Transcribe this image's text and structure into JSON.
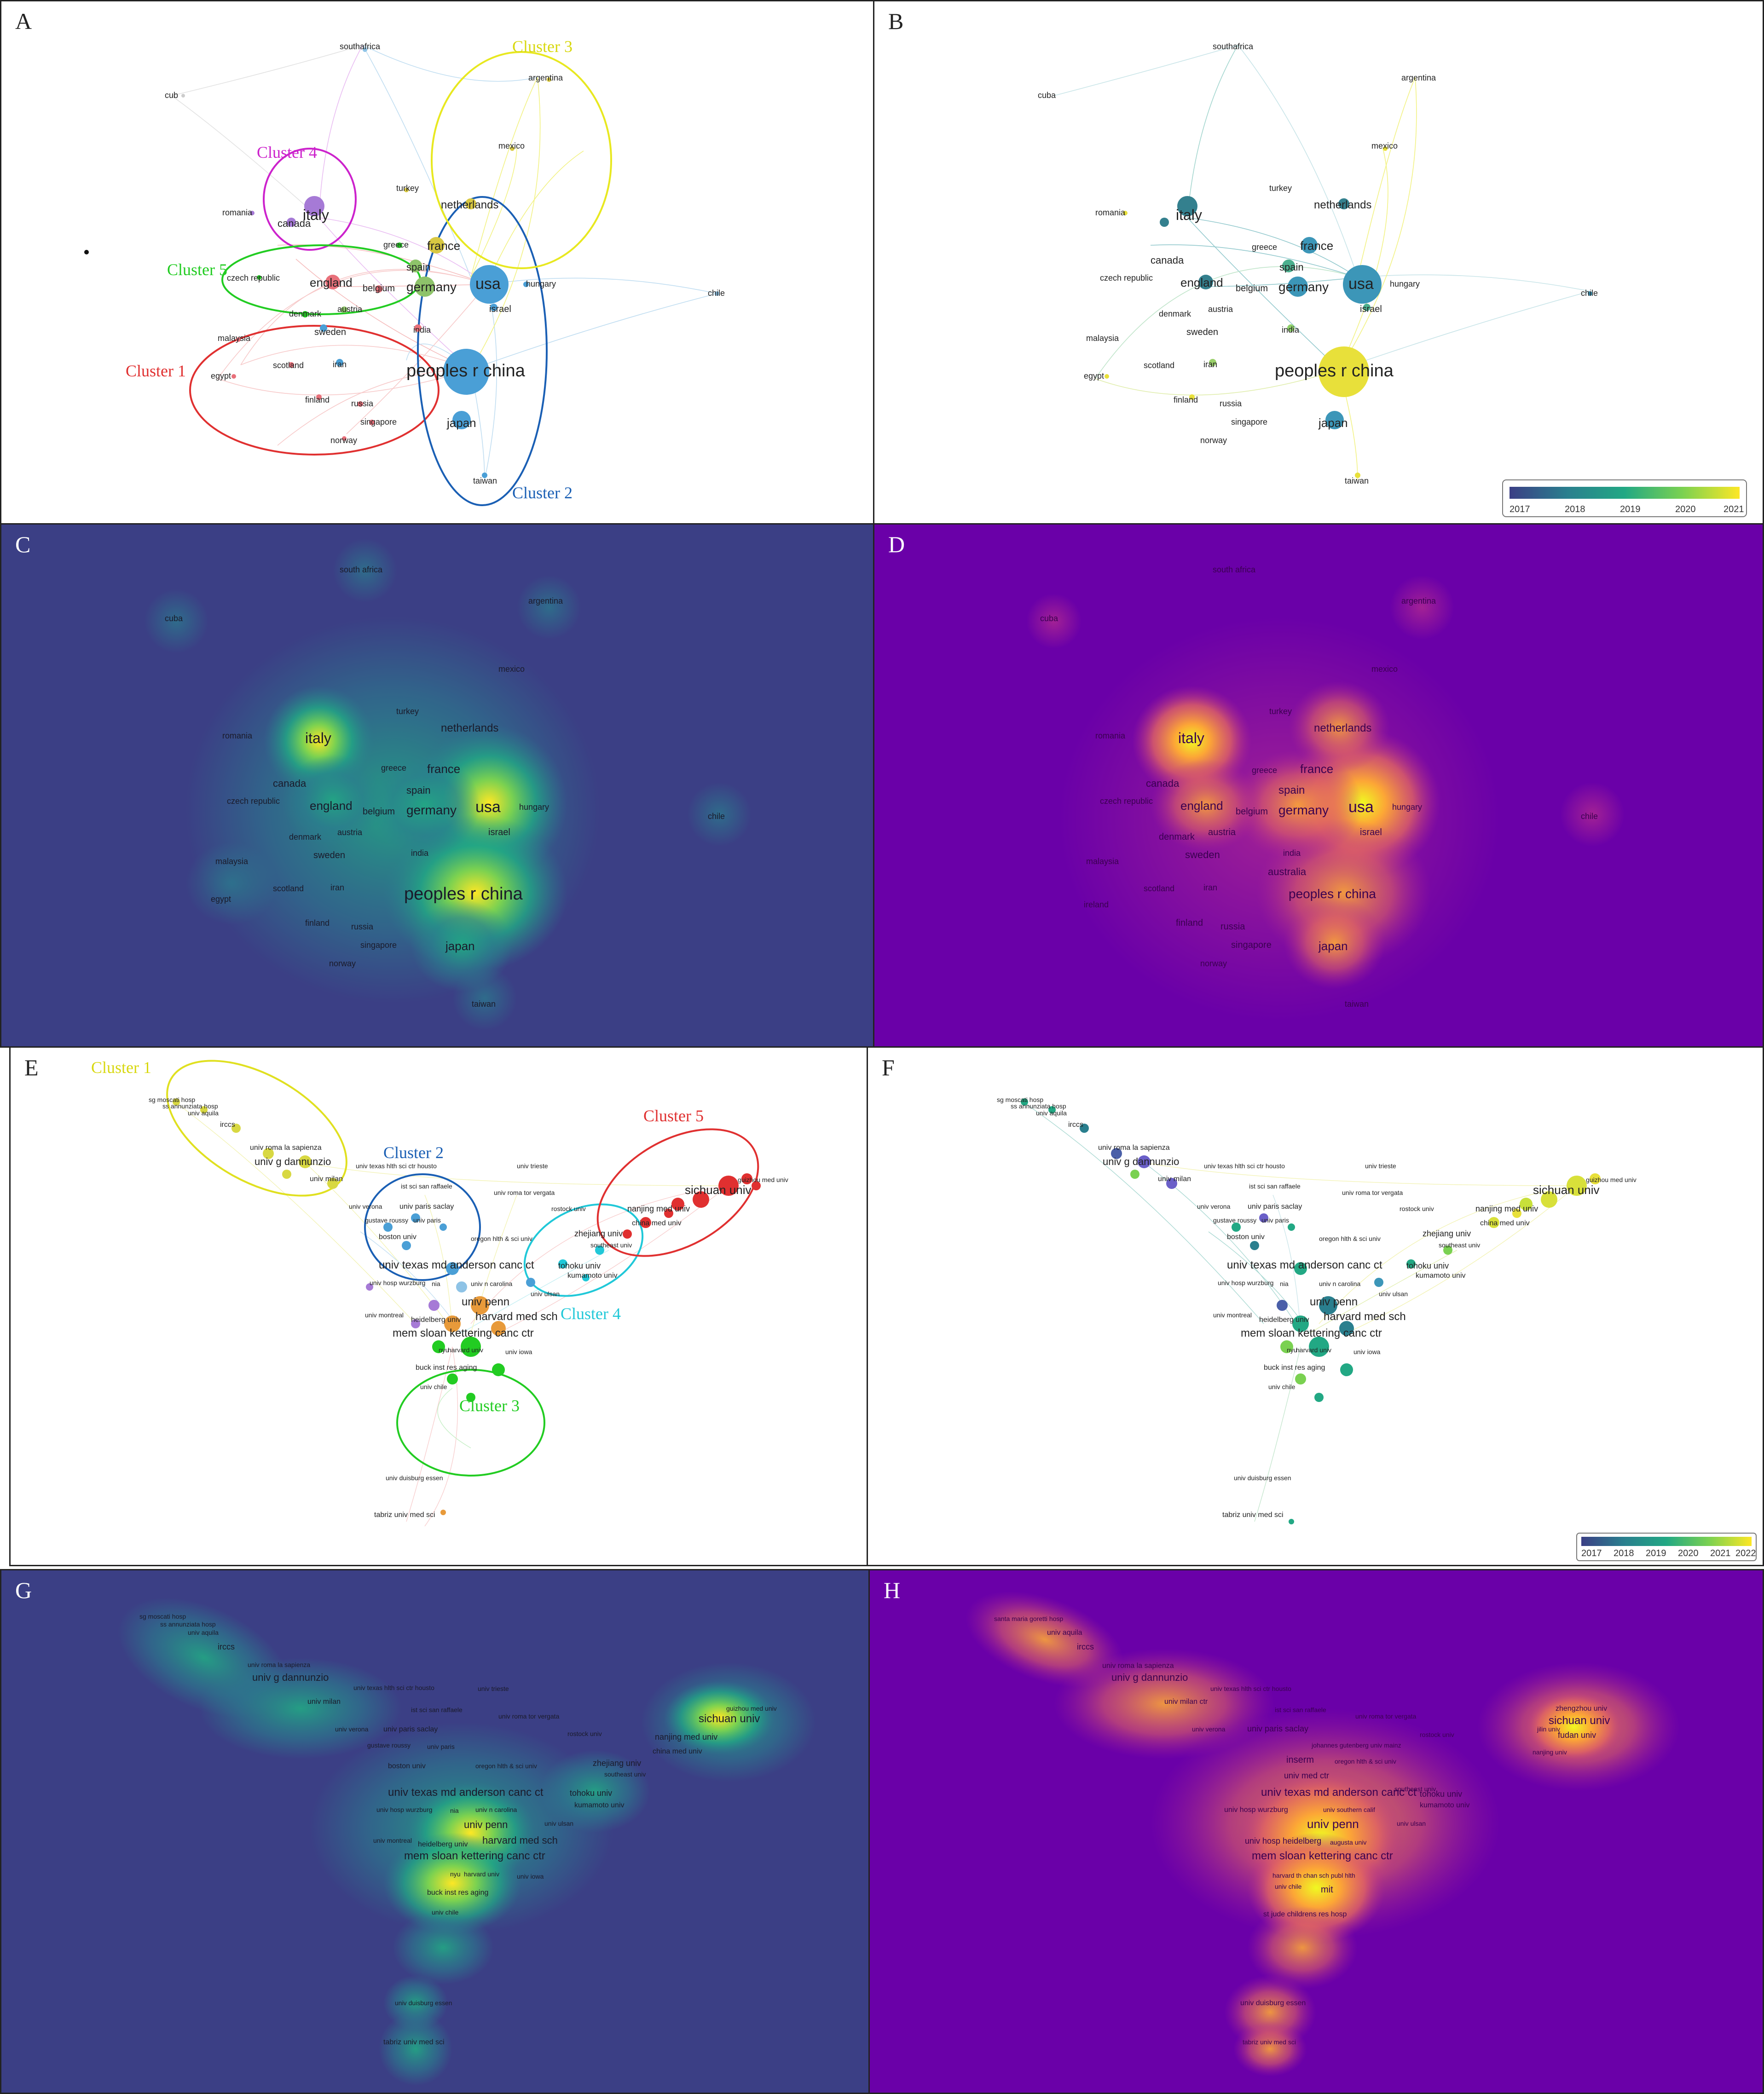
{
  "panels": {
    "A": {
      "label": "A"
    },
    "B": {
      "label": "B"
    },
    "C": {
      "label": "C"
    },
    "D": {
      "label": "D"
    },
    "E": {
      "label": "E"
    },
    "F": {
      "label": "F"
    },
    "G": {
      "label": "G"
    },
    "H": {
      "label": "H"
    }
  },
  "countries": [
    {
      "id": "southafrica_a",
      "label": "southafrica"
    },
    {
      "id": "argentina",
      "label": "argentina"
    },
    {
      "id": "cuba",
      "label": "cuba"
    },
    {
      "id": "mexico",
      "label": "mexico"
    },
    {
      "id": "turkey",
      "label": "turkey"
    },
    {
      "id": "netherlands",
      "label": "netherlands"
    },
    {
      "id": "romania",
      "label": "romania"
    },
    {
      "id": "italy",
      "label": "italy"
    },
    {
      "id": "canada",
      "label": "canada"
    },
    {
      "id": "greece",
      "label": "greece"
    },
    {
      "id": "france",
      "label": "france"
    },
    {
      "id": "czech",
      "label": "czech republic"
    },
    {
      "id": "england",
      "label": "england"
    },
    {
      "id": "belgium",
      "label": "belgium"
    },
    {
      "id": "germany",
      "label": "germany"
    },
    {
      "id": "spain",
      "label": "spain"
    },
    {
      "id": "usa",
      "label": "usa"
    },
    {
      "id": "hungary",
      "label": "hungary"
    },
    {
      "id": "chile",
      "label": "chile"
    },
    {
      "id": "denmark",
      "label": "denmark"
    },
    {
      "id": "austria",
      "label": "austria"
    },
    {
      "id": "israel",
      "label": "israel"
    },
    {
      "id": "sweden",
      "label": "sweden"
    },
    {
      "id": "india",
      "label": "india"
    },
    {
      "id": "malaysia",
      "label": "malaysia"
    },
    {
      "id": "egypt",
      "label": "egypt"
    },
    {
      "id": "scotland",
      "label": "scotland"
    },
    {
      "id": "iran",
      "label": "iran"
    },
    {
      "id": "china",
      "label": "peoples r china"
    },
    {
      "id": "finland",
      "label": "finland"
    },
    {
      "id": "russia",
      "label": "russia"
    },
    {
      "id": "singapore",
      "label": "singapore"
    },
    {
      "id": "japan",
      "label": "japan"
    },
    {
      "id": "norway",
      "label": "norway"
    },
    {
      "id": "taiwan",
      "label": "taiwan"
    }
  ],
  "country_extra": {
    "cub_truncated": "cub",
    "south_africa": "south africa",
    "australia": "australia",
    "ireland": "ireland"
  },
  "clusters_A": [
    {
      "label": "Cluster 1",
      "color": "#e03030"
    },
    {
      "label": "Cluster 2",
      "color": "#1a5fb4"
    },
    {
      "label": "Cluster 3",
      "color": "#e8e820"
    },
    {
      "label": "Cluster 4",
      "color": "#cc22cc"
    },
    {
      "label": "Cluster 5",
      "color": "#22cc22"
    }
  ],
  "clusters_E": [
    {
      "label": "Cluster 1",
      "color": "#e8e820"
    },
    {
      "label": "Cluster 2",
      "color": "#1a5fb4"
    },
    {
      "label": "Cluster 3",
      "color": "#22cc22"
    },
    {
      "label": "Cluster 4",
      "color": "#20c8d8"
    },
    {
      "label": "Cluster 5",
      "color": "#e03030"
    }
  ],
  "legend_B": {
    "ticks": [
      "2017",
      "2018",
      "2019",
      "2020",
      "2021"
    ]
  },
  "legend_F": {
    "ticks": [
      "2017",
      "2018",
      "2019",
      "2020",
      "2021",
      "2022"
    ]
  },
  "institutions": [
    {
      "id": "sgmoscati",
      "label": "sg moscati hosp"
    },
    {
      "id": "ssannunziata",
      "label": "ss annunziata hosp"
    },
    {
      "id": "aquila",
      "label": "univ aquila"
    },
    {
      "id": "irccs",
      "label": "irccs"
    },
    {
      "id": "sapienza",
      "label": "univ roma la sapienza"
    },
    {
      "id": "dannunzio",
      "label": "univ g dannunzio"
    },
    {
      "id": "milan",
      "label": "univ milan"
    },
    {
      "id": "texashlth",
      "label": "univ texas hlth sci ctr housto"
    },
    {
      "id": "trieste",
      "label": "univ trieste"
    },
    {
      "id": "raffaele",
      "label": "ist sci san raffaele"
    },
    {
      "id": "torvergata",
      "label": "univ roma tor vergata"
    },
    {
      "id": "verona",
      "label": "univ verona"
    },
    {
      "id": "saclay",
      "label": "univ paris saclay"
    },
    {
      "id": "rostock",
      "label": "rostock univ"
    },
    {
      "id": "roussy",
      "label": "gustave roussy"
    },
    {
      "id": "paris",
      "label": "univ paris"
    },
    {
      "id": "boston",
      "label": "boston univ"
    },
    {
      "id": "oregon",
      "label": "oregon hlth & sci univ"
    },
    {
      "id": "zhejiang",
      "label": "zhejiang univ"
    },
    {
      "id": "southeast",
      "label": "southeast univ"
    },
    {
      "id": "mdanderson",
      "label": "univ texas md anderson canc ct"
    },
    {
      "id": "tohoku",
      "label": "tohoku univ"
    },
    {
      "id": "kumamoto",
      "label": "kumamoto univ"
    },
    {
      "id": "wurzburg",
      "label": "univ hosp wurzburg"
    },
    {
      "id": "nia",
      "label": "nia"
    },
    {
      "id": "ncarolina",
      "label": "univ n carolina"
    },
    {
      "id": "ulsan",
      "label": "univ ulsan"
    },
    {
      "id": "penn",
      "label": "univ penn"
    },
    {
      "id": "montreal",
      "label": "univ montreal"
    },
    {
      "id": "heidelberg",
      "label": "heidelberg univ"
    },
    {
      "id": "harvard",
      "label": "harvard med sch"
    },
    {
      "id": "msk",
      "label": "mem sloan kettering canc ctr"
    },
    {
      "id": "nyu",
      "label": "nyu"
    },
    {
      "id": "harvardu",
      "label": "harvard univ"
    },
    {
      "id": "iowa",
      "label": "univ iowa"
    },
    {
      "id": "buck",
      "label": "buck inst res aging"
    },
    {
      "id": "uchile",
      "label": "univ chile"
    },
    {
      "id": "guizhou",
      "label": "guizhou med univ"
    },
    {
      "id": "sichuan",
      "label": "sichuan univ"
    },
    {
      "id": "nanjing",
      "label": "nanjing med univ"
    },
    {
      "id": "chinamed",
      "label": "china med univ"
    },
    {
      "id": "duisburg",
      "label": "univ duisburg essen"
    },
    {
      "id": "tabriz",
      "label": "tabriz univ med sci"
    }
  ],
  "institutions_H_extra": [
    "santa maria goretti hosp",
    "univ milan ctr",
    "inserm",
    "univ med ctr",
    "univ southern calif",
    "univ hosp heidelberg",
    "augusta univ",
    "harvard th chan sch publ hlth",
    "mit",
    "st jude childrens res hosp",
    "zhengzhou univ",
    "fudan univ",
    "johannes gutenberg univ mainz",
    "jilin univ",
    "nanjing univ"
  ]
}
